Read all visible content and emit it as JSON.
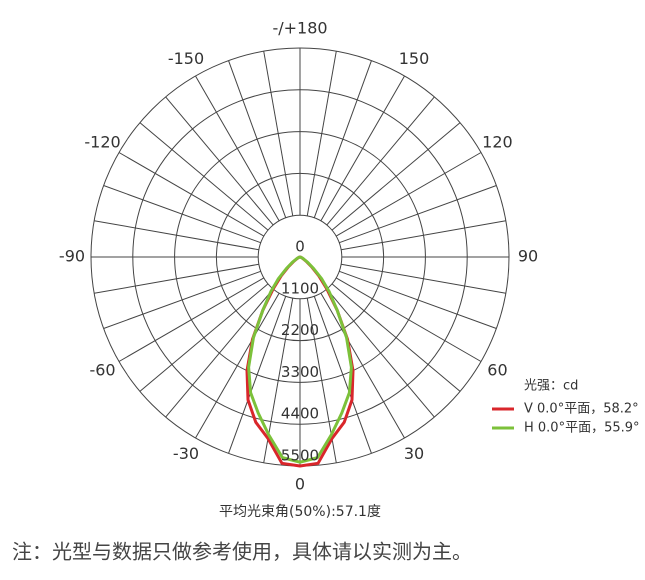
{
  "chart_data": {
    "type": "polar",
    "subtitle": "平均光束角(50%):57.1度",
    "note": "注：光型与数据只做参考使用，具体请以实测为主。",
    "legend_title": "光强：cd",
    "legend": "lower right",
    "x": [
      -90,
      -85,
      -80,
      -75,
      -70,
      -65,
      -60,
      -55,
      -50,
      -45,
      -40,
      -35,
      -30,
      -25,
      -20,
      -15,
      -10,
      -5,
      0,
      5,
      10,
      15,
      20,
      25,
      30,
      35,
      40,
      45,
      50,
      55,
      60,
      65,
      70,
      75,
      80,
      85,
      90
    ],
    "series": [
      {
        "name": "V 0.0°平面，58.2°",
        "color": "#d9262b",
        "values": [
          0,
          5,
          10,
          20,
          30,
          60,
          100,
          200,
          400,
          700,
          1100,
          1700,
          2500,
          3300,
          4000,
          4500,
          4850,
          5450,
          5500,
          5450,
          4850,
          4500,
          4000,
          3300,
          2500,
          1700,
          1100,
          700,
          400,
          200,
          100,
          60,
          30,
          20,
          10,
          5,
          0
        ]
      },
      {
        "name": "H 0.0°平面，55.9°",
        "color": "#7cc13a",
        "values": [
          0,
          5,
          10,
          25,
          40,
          80,
          120,
          250,
          450,
          800,
          1200,
          1700,
          2450,
          3200,
          3800,
          4250,
          4750,
          5300,
          5400,
          5300,
          4750,
          4250,
          3800,
          3200,
          2450,
          1700,
          1200,
          800,
          450,
          250,
          120,
          80,
          40,
          25,
          10,
          5,
          0
        ]
      }
    ],
    "xticks": [
      {
        "value": 180,
        "label": "-/+180"
      },
      -150,
      -120,
      -90,
      -60,
      -30,
      0,
      30,
      60,
      90,
      120,
      150
    ],
    "rlim": [
      0,
      5500
    ],
    "rticks": [
      0,
      1100,
      2200,
      3300,
      4400,
      5500
    ],
    "grid": true
  }
}
